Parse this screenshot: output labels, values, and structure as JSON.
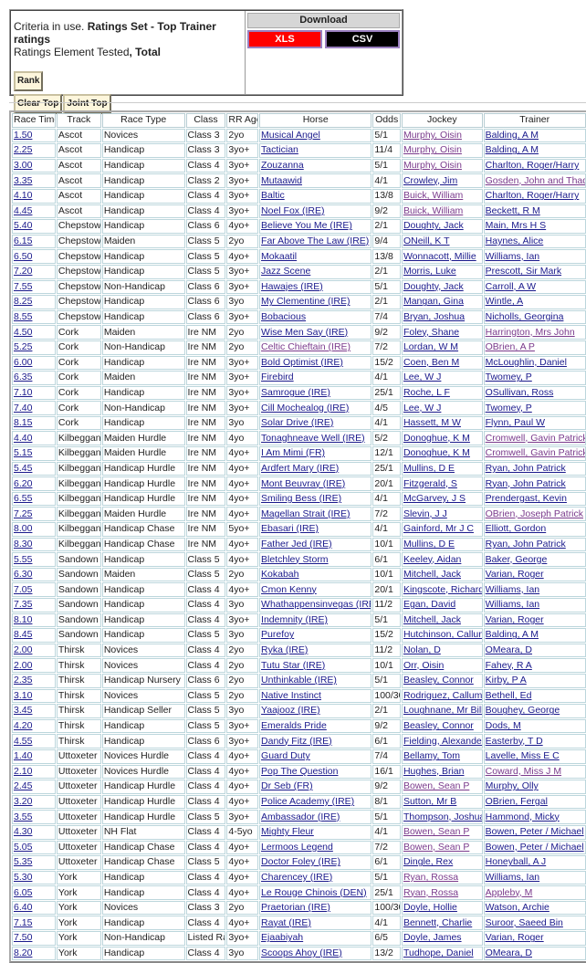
{
  "criteria": {
    "prefix": "Criteria in use. ",
    "ratings_set": "Ratings Set - Top Trainer ratings",
    "element_prefix": "Ratings Element Tested",
    "element_value": ", Total",
    "rank_label": "Rank",
    "clear_top_label": "Clear Top",
    "joint_top_label": "Joint Top"
  },
  "download": {
    "title": "Download",
    "xls_label": "XLS",
    "csv_label": "CSV",
    "xls_color": "#ff0000",
    "csv_color": "#000000"
  },
  "table": {
    "headers": [
      "Race Time",
      "Track",
      "Race Type",
      "Class",
      "RR Age",
      "Horse",
      "Odds",
      "Jockey",
      "Trainer"
    ],
    "rows": [
      [
        "1.50",
        "Ascot",
        "Novices",
        "Class 3",
        "2yo",
        "Musical Angel",
        "5/1",
        "Murphy, Oisin",
        "Balding, A M"
      ],
      [
        "2.25",
        "Ascot",
        "Handicap",
        "Class 3",
        "3yo+",
        "Tactician",
        "11/4",
        "Murphy, Oisin",
        "Balding, A M"
      ],
      [
        "3.00",
        "Ascot",
        "Handicap",
        "Class 4",
        "3yo+",
        "Zouzanna",
        "5/1",
        "Murphy, Oisin",
        "Charlton, Roger/Harry"
      ],
      [
        "3.35",
        "Ascot",
        "Handicap",
        "Class 2",
        "3yo+",
        "Mutaawid",
        "4/1",
        "Crowley, Jim",
        "Gosden, John and Thady"
      ],
      [
        "4.10",
        "Ascot",
        "Handicap",
        "Class 4",
        "3yo+",
        "Baltic",
        "13/8",
        "Buick, William",
        "Charlton, Roger/Harry"
      ],
      [
        "4.45",
        "Ascot",
        "Handicap",
        "Class 4",
        "3yo+",
        "Noel Fox (IRE)",
        "9/2",
        "Buick, William",
        "Beckett, R M"
      ],
      [
        "5.40",
        "Chepstow",
        "Handicap",
        "Class 6",
        "4yo+",
        "Believe You Me (IRE)",
        "2/1",
        "Doughty, Jack",
        "Main, Mrs H S"
      ],
      [
        "6.15",
        "Chepstow",
        "Maiden",
        "Class 5",
        "2yo",
        "Far Above The Law (IRE)",
        "9/4",
        "ONeill, K T",
        "Haynes, Alice"
      ],
      [
        "6.50",
        "Chepstow",
        "Handicap",
        "Class 5",
        "4yo+",
        "Mokaatil",
        "13/8",
        "Wonnacott, Millie",
        "Williams, Ian"
      ],
      [
        "7.20",
        "Chepstow",
        "Handicap",
        "Class 5",
        "3yo+",
        "Jazz Scene",
        "2/1",
        "Morris, Luke",
        "Prescott, Sir Mark"
      ],
      [
        "7.55",
        "Chepstow",
        "Non-Handicap",
        "Class 6",
        "3yo+",
        "Hawajes (IRE)",
        "5/1",
        "Doughty, Jack",
        "Carroll, A W"
      ],
      [
        "8.25",
        "Chepstow",
        "Handicap",
        "Class 6",
        "3yo",
        "My Clementine (IRE)",
        "2/1",
        "Mangan, Gina",
        "Wintle, A"
      ],
      [
        "8.55",
        "Chepstow",
        "Handicap",
        "Class 6",
        "3yo+",
        "Bobacious",
        "7/4",
        "Bryan, Joshua",
        "Nicholls, Georgina"
      ],
      [
        "4.50",
        "Cork",
        "Maiden",
        "Ire NM",
        "2yo",
        "Wise Men Say (IRE)",
        "9/2",
        "Foley, Shane",
        "Harrington, Mrs John"
      ],
      [
        "5.25",
        "Cork",
        "Non-Handicap",
        "Ire NM",
        "2yo",
        "Celtic Chieftain (IRE)",
        "7/2",
        "Lordan, W M",
        "OBrien, A P"
      ],
      [
        "6.00",
        "Cork",
        "Handicap",
        "Ire NM",
        "3yo+",
        "Bold Optimist (IRE)",
        "15/2",
        "Coen, Ben M",
        "McLoughlin, Daniel"
      ],
      [
        "6.35",
        "Cork",
        "Maiden",
        "Ire NM",
        "3yo+",
        "Firebird",
        "4/1",
        "Lee, W J",
        "Twomey, P"
      ],
      [
        "7.10",
        "Cork",
        "Handicap",
        "Ire NM",
        "3yo+",
        "Samrogue (IRE)",
        "25/1",
        "Roche, L F",
        "OSullivan, Ross"
      ],
      [
        "7.40",
        "Cork",
        "Non-Handicap",
        "Ire NM",
        "3yo+",
        "Cill Mochealog (IRE)",
        "4/5",
        "Lee, W J",
        "Twomey, P"
      ],
      [
        "8.15",
        "Cork",
        "Handicap",
        "Ire NM",
        "3yo",
        "Solar Drive (IRE)",
        "4/1",
        "Hassett, M W",
        "Flynn, Paul W"
      ],
      [
        "4.40",
        "Kilbeggan",
        "Maiden Hurdle",
        "Ire NM",
        "4yo",
        "Tonaghneave Well (IRE)",
        "5/2",
        "Donoghue, K M",
        "Cromwell, Gavin Patrick"
      ],
      [
        "5.15",
        "Kilbeggan",
        "Maiden Hurdle",
        "Ire NM",
        "4yo+",
        "I Am Mimi (FR)",
        "12/1",
        "Donoghue, K M",
        "Cromwell, Gavin Patrick"
      ],
      [
        "5.45",
        "Kilbeggan",
        "Handicap Hurdle",
        "Ire NM",
        "4yo+",
        "Ardfert Mary (IRE)",
        "25/1",
        "Mullins, D E",
        "Ryan, John Patrick"
      ],
      [
        "6.20",
        "Kilbeggan",
        "Handicap Hurdle",
        "Ire NM",
        "4yo+",
        "Mont Beuvray (IRE)",
        "20/1",
        "Fitzgerald, S",
        "Ryan, John Patrick"
      ],
      [
        "6.55",
        "Kilbeggan",
        "Handicap Hurdle",
        "Ire NM",
        "4yo+",
        "Smiling Bess (IRE)",
        "4/1",
        "McGarvey, J S",
        "Prendergast, Kevin"
      ],
      [
        "7.25",
        "Kilbeggan",
        "Maiden Hurdle",
        "Ire NM",
        "4yo+",
        "Magellan Strait (IRE)",
        "7/2",
        "Slevin, J J",
        "OBrien, Joseph Patrick"
      ],
      [
        "8.00",
        "Kilbeggan",
        "Handicap Chase",
        "Ire NM",
        "5yo+",
        "Ebasari (IRE)",
        "4/1",
        "Gainford, Mr J C",
        "Elliott, Gordon"
      ],
      [
        "8.30",
        "Kilbeggan",
        "Handicap Chase",
        "Ire NM",
        "4yo+",
        "Father Jed (IRE)",
        "10/1",
        "Mullins, D E",
        "Ryan, John Patrick"
      ],
      [
        "5.55",
        "Sandown",
        "Handicap",
        "Class 5",
        "4yo+",
        "Bletchley Storm",
        "6/1",
        "Keeley, Aidan",
        "Baker, George"
      ],
      [
        "6.30",
        "Sandown",
        "Maiden",
        "Class 5",
        "2yo",
        "Kokabah",
        "10/1",
        "Mitchell, Jack",
        "Varian, Roger"
      ],
      [
        "7.05",
        "Sandown",
        "Handicap",
        "Class 4",
        "4yo+",
        "Cmon Kenny",
        "20/1",
        "Kingscote, Richard",
        "Williams, Ian"
      ],
      [
        "7.35",
        "Sandown",
        "Handicap",
        "Class 4",
        "3yo",
        "Whathappensinvegas (IRE)",
        "11/2",
        "Egan, David",
        "Williams, Ian"
      ],
      [
        "8.10",
        "Sandown",
        "Handicap",
        "Class 4",
        "3yo+",
        "Indemnity (IRE)",
        "5/1",
        "Mitchell, Jack",
        "Varian, Roger"
      ],
      [
        "8.45",
        "Sandown",
        "Handicap",
        "Class 5",
        "3yo",
        "Purefoy",
        "15/2",
        "Hutchinson, Callum",
        "Balding, A M"
      ],
      [
        "2.00",
        "Thirsk",
        "Novices",
        "Class 4",
        "2yo",
        "Ryka (IRE)",
        "11/2",
        "Nolan, D",
        "OMeara, D"
      ],
      [
        "2.00",
        "Thirsk",
        "Novices",
        "Class 4",
        "2yo",
        "Tutu Star (IRE)",
        "10/1",
        "Orr, Oisin",
        "Fahey, R A"
      ],
      [
        "2.35",
        "Thirsk",
        "Handicap Nursery",
        "Class 6",
        "2yo",
        "Unthinkable (IRE)",
        "5/1",
        "Beasley, Connor",
        "Kirby, P A"
      ],
      [
        "3.10",
        "Thirsk",
        "Novices",
        "Class 5",
        "2yo",
        "Native Instinct",
        "100/30",
        "Rodriguez, Callum",
        "Bethell, Ed"
      ],
      [
        "3.45",
        "Thirsk",
        "Handicap Seller",
        "Class 5",
        "3yo",
        "Yaajooz (IRE)",
        "2/1",
        "Loughnane, Mr Billy",
        "Boughey, George"
      ],
      [
        "4.20",
        "Thirsk",
        "Handicap",
        "Class 5",
        "3yo+",
        "Emeralds Pride",
        "9/2",
        "Beasley, Connor",
        "Dods, M"
      ],
      [
        "4.55",
        "Thirsk",
        "Handicap",
        "Class 6",
        "3yo+",
        "Dandy Fitz (IRE)",
        "6/1",
        "Fielding, Alexander",
        "Easterby, T D"
      ],
      [
        "1.40",
        "Uttoxeter",
        "Novices Hurdle",
        "Class 4",
        "4yo+",
        "Guard Duty",
        "7/4",
        "Bellamy, Tom",
        "Lavelle, Miss E C"
      ],
      [
        "2.10",
        "Uttoxeter",
        "Novices Hurdle",
        "Class 4",
        "4yo+",
        "Pop The Question",
        "16/1",
        "Hughes, Brian",
        "Coward, Miss J M"
      ],
      [
        "2.45",
        "Uttoxeter",
        "Handicap Hurdle",
        "Class 4",
        "4yo+",
        "Dr Seb (FR)",
        "9/2",
        "Bowen, Sean P",
        "Murphy, Olly"
      ],
      [
        "3.20",
        "Uttoxeter",
        "Handicap Hurdle",
        "Class 4",
        "4yo+",
        "Police Academy (IRE)",
        "8/1",
        "Sutton, Mr B",
        "OBrien, Fergal"
      ],
      [
        "3.55",
        "Uttoxeter",
        "Handicap Hurdle",
        "Class 5",
        "3yo+",
        "Ambassador (IRE)",
        "5/1",
        "Thompson, Joshua",
        "Hammond, Micky"
      ],
      [
        "4.30",
        "Uttoxeter",
        "NH Flat",
        "Class 4",
        "4-5yo",
        "Mighty Fleur",
        "4/1",
        "Bowen, Sean P",
        "Bowen, Peter / Michael"
      ],
      [
        "5.05",
        "Uttoxeter",
        "Handicap Chase",
        "Class 4",
        "4yo+",
        "Lermoos Legend",
        "7/2",
        "Bowen, Sean P",
        "Bowen, Peter / Michael"
      ],
      [
        "5.35",
        "Uttoxeter",
        "Handicap Chase",
        "Class 5",
        "4yo+",
        "Doctor Foley (IRE)",
        "6/1",
        "Dingle, Rex",
        "Honeyball, A J"
      ],
      [
        "5.30",
        "York",
        "Handicap",
        "Class 4",
        "4yo+",
        "Charencey (IRE)",
        "5/1",
        "Ryan, Rossa",
        "Williams, Ian"
      ],
      [
        "6.05",
        "York",
        "Handicap",
        "Class 4",
        "4yo+",
        "Le Rouge Chinois (DEN)",
        "25/1",
        "Ryan, Rossa",
        "Appleby, M"
      ],
      [
        "6.40",
        "York",
        "Novices",
        "Class 3",
        "2yo",
        "Praetorian (IRE)",
        "100/30",
        "Doyle, Hollie",
        "Watson, Archie"
      ],
      [
        "7.15",
        "York",
        "Handicap",
        "Class 4",
        "4yo+",
        "Rayat (IRE)",
        "4/1",
        "Bennett, Charlie",
        "Suroor, Saeed Bin"
      ],
      [
        "7.50",
        "York",
        "Non-Handicap",
        "Listed Race",
        "3yo+",
        "Ejaabiyah",
        "6/5",
        "Doyle, James",
        "Varian, Roger"
      ],
      [
        "8.20",
        "York",
        "Handicap",
        "Class 4",
        "3yo",
        "Scoops Ahoy (IRE)",
        "13/2",
        "Tudhope, Daniel",
        "OMeara, D"
      ]
    ],
    "visited_links": {
      "jockey": [
        "Murphy, Oisin",
        "Buick, William",
        "Bowen, Sean P",
        "Ryan, Rossa"
      ],
      "trainer": [
        "Gosden, John and Thady",
        "Harrington, Mrs John",
        "OBrien, A P",
        "Cromwell, Gavin Patrick",
        "OBrien, Joseph Patrick",
        "Coward, Miss J M",
        "Appleby, M"
      ],
      "horse": [
        "Celtic Chieftain (IRE)"
      ]
    },
    "link_color": "#1a1a8c",
    "visited_color": "#7a3a8c"
  }
}
